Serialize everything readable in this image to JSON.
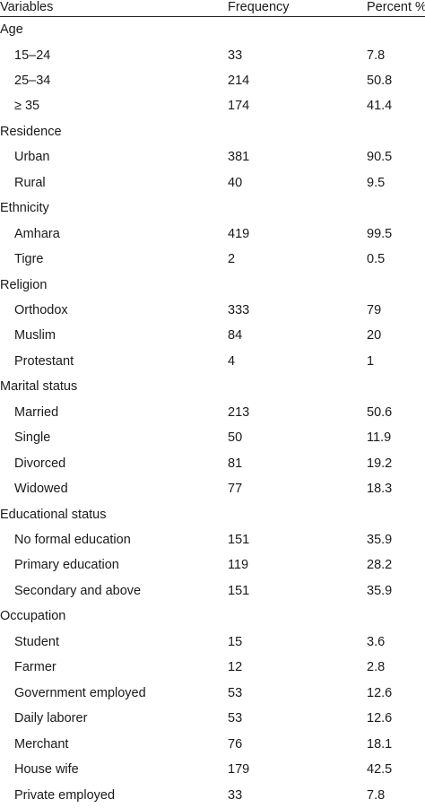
{
  "header": {
    "variables": "Variables",
    "frequency": "Frequency",
    "percent": "Percent %"
  },
  "rows": [
    {
      "type": "group",
      "label": "Age"
    },
    {
      "type": "item",
      "label": "15–24",
      "frequency": "33",
      "percent": "7.8"
    },
    {
      "type": "item",
      "label": "25–34",
      "frequency": "214",
      "percent": "50.8"
    },
    {
      "type": "item",
      "label": "≥ 35",
      "frequency": "174",
      "percent": "41.4"
    },
    {
      "type": "group",
      "label": "Residence"
    },
    {
      "type": "item",
      "label": "Urban",
      "frequency": "381",
      "percent": "90.5"
    },
    {
      "type": "item",
      "label": "Rural",
      "frequency": "40",
      "percent": "9.5"
    },
    {
      "type": "group",
      "label": "Ethnicity"
    },
    {
      "type": "item",
      "label": "Amhara",
      "frequency": "419",
      "percent": "99.5"
    },
    {
      "type": "item",
      "label": "Tigre",
      "frequency": "2",
      "percent": "0.5"
    },
    {
      "type": "group",
      "label": "Religion"
    },
    {
      "type": "item",
      "label": "Orthodox",
      "frequency": "333",
      "percent": "79"
    },
    {
      "type": "item",
      "label": "Muslim",
      "frequency": "84",
      "percent": "20"
    },
    {
      "type": "item",
      "label": "Protestant",
      "frequency": "4",
      "percent": "1"
    },
    {
      "type": "group",
      "label": "Marital status"
    },
    {
      "type": "item",
      "label": "Married",
      "frequency": "213",
      "percent": "50.6"
    },
    {
      "type": "item",
      "label": "Single",
      "frequency": "50",
      "percent": "11.9"
    },
    {
      "type": "item",
      "label": "Divorced",
      "frequency": "81",
      "percent": "19.2"
    },
    {
      "type": "item",
      "label": "Widowed",
      "frequency": "77",
      "percent": "18.3"
    },
    {
      "type": "group",
      "label": "Educational status"
    },
    {
      "type": "item",
      "label": "No formal education",
      "frequency": "151",
      "percent": "35.9"
    },
    {
      "type": "item",
      "label": "Primary education",
      "frequency": "119",
      "percent": "28.2"
    },
    {
      "type": "item",
      "label": "Secondary and above",
      "frequency": "151",
      "percent": "35.9"
    },
    {
      "type": "group",
      "label": "Occupation"
    },
    {
      "type": "item",
      "label": "Student",
      "frequency": "15",
      "percent": "3.6"
    },
    {
      "type": "item",
      "label": "Farmer",
      "frequency": "12",
      "percent": "2.8"
    },
    {
      "type": "item",
      "label": "Government employed",
      "frequency": "53",
      "percent": "12.6"
    },
    {
      "type": "item",
      "label": "Daily laborer",
      "frequency": "53",
      "percent": "12.6"
    },
    {
      "type": "item",
      "label": "Merchant",
      "frequency": "76",
      "percent": "18.1"
    },
    {
      "type": "item",
      "label": "House wife",
      "frequency": "179",
      "percent": "42.5"
    },
    {
      "type": "item",
      "label": "Private employed",
      "frequency": "33",
      "percent": "7.8"
    }
  ]
}
